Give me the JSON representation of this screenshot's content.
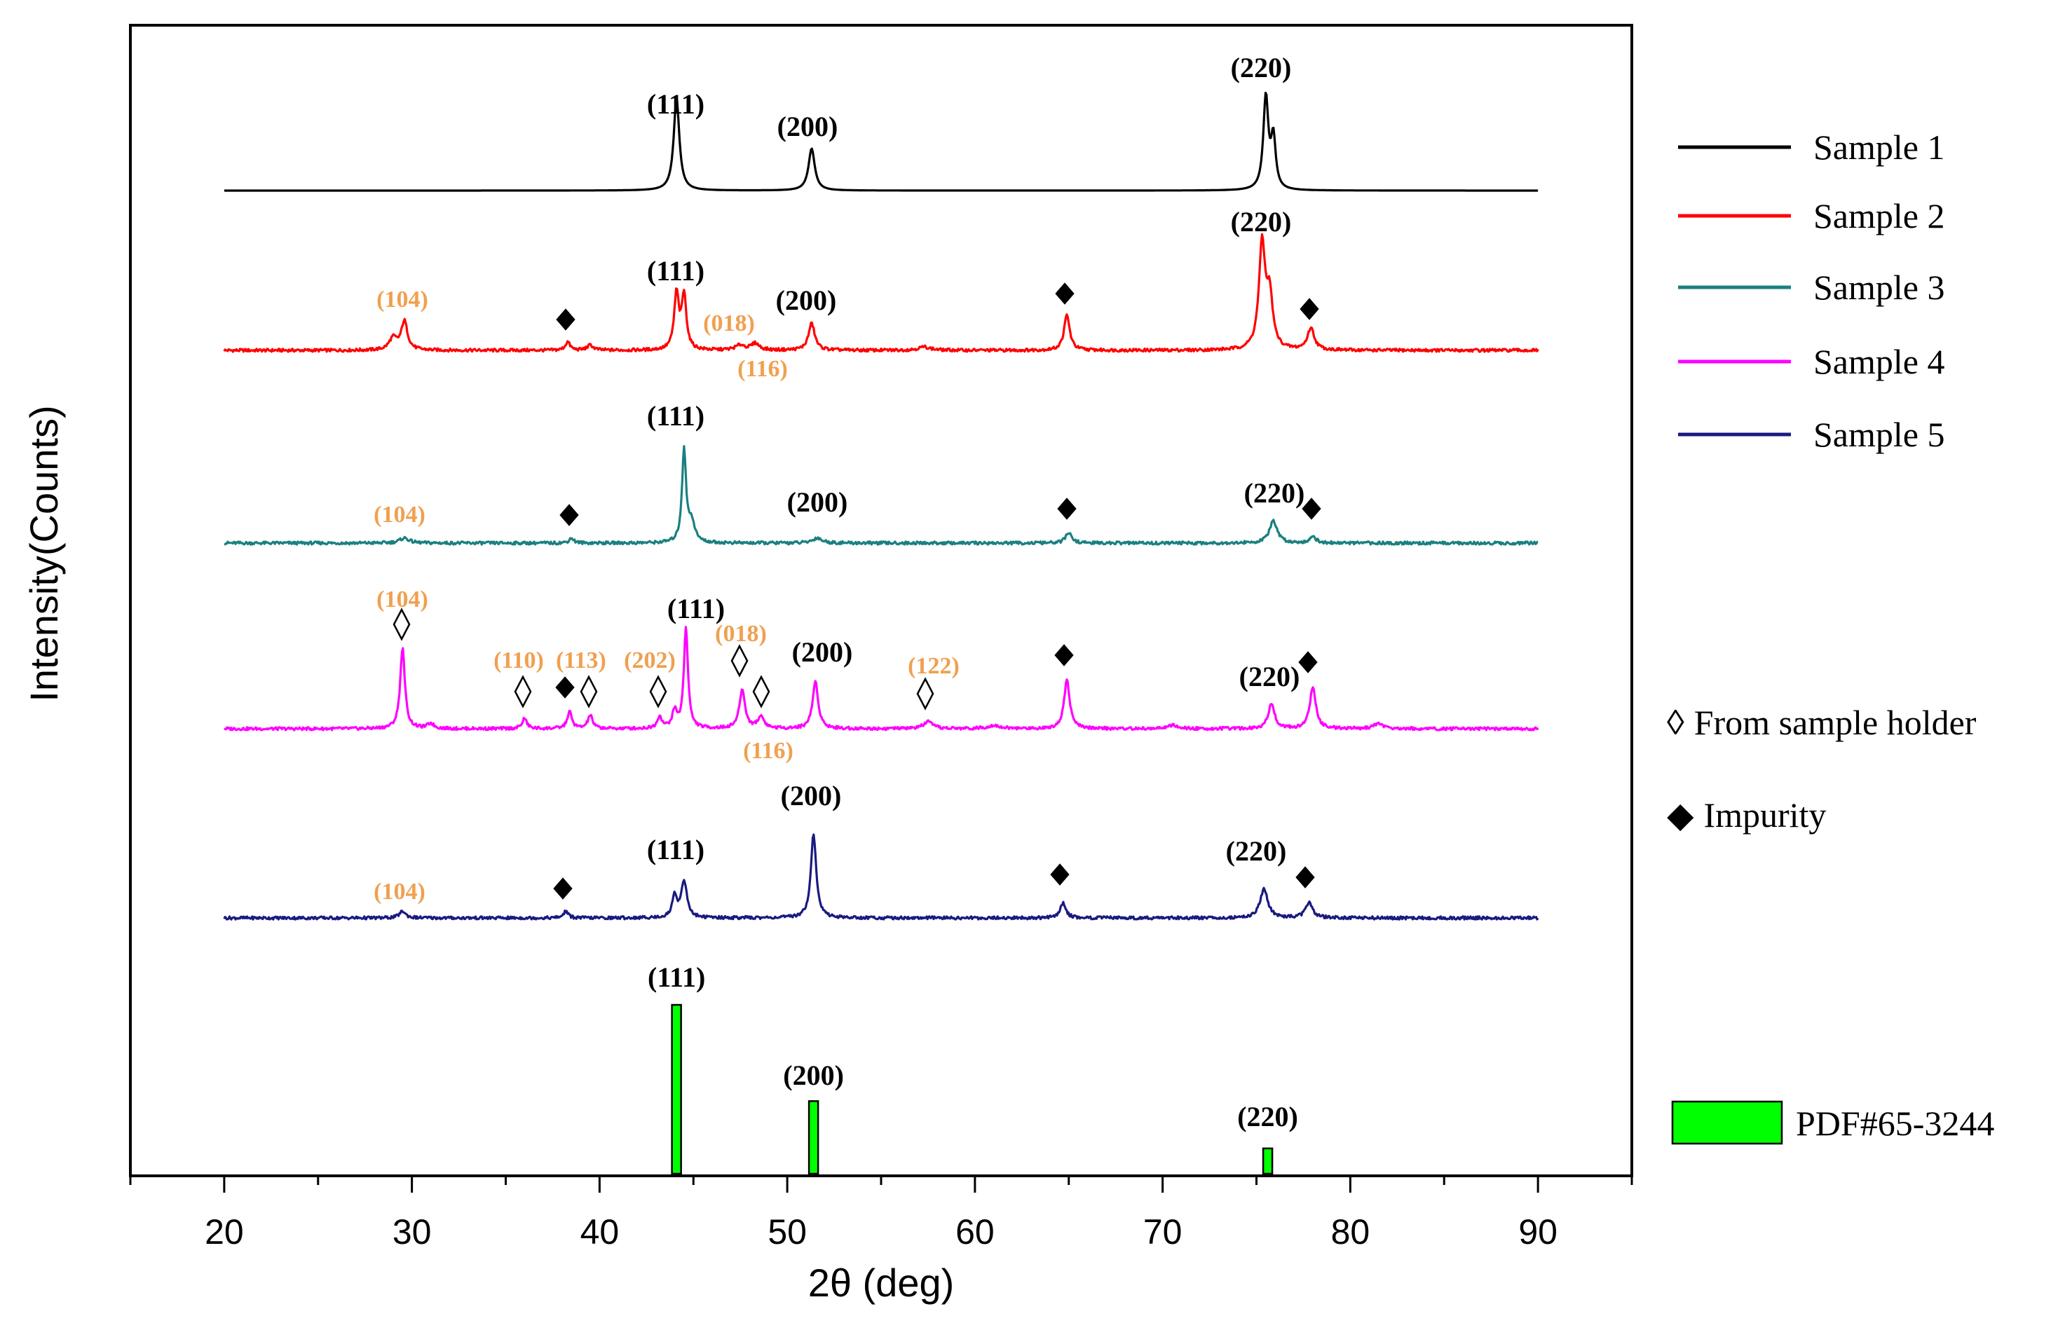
{
  "chart_data": {
    "type": "line",
    "title": "",
    "xlabel": "2θ (deg)",
    "ylabel": "Intensity(Counts)",
    "xlim": [
      15,
      95
    ],
    "xticks": [
      20,
      30,
      40,
      50,
      60,
      70,
      80,
      90
    ],
    "xtick_labels": [
      "20",
      "30",
      "40",
      "50",
      "60",
      "70",
      "80",
      "90"
    ],
    "yticks_shown": false,
    "legend": {
      "position": "right",
      "line_entries": [
        {
          "label": "Sample 1",
          "color": "#000000"
        },
        {
          "label": "Sample 2",
          "color": "#ff0000"
        },
        {
          "label": "Sample 3",
          "color": "#1a8080"
        },
        {
          "label": "Sample 4",
          "color": "#ff00ff"
        },
        {
          "label": "Sample 5",
          "color": "#1a1a80"
        }
      ],
      "symbol_entries": [
        {
          "symbol": "◊",
          "label": "From sample holder"
        },
        {
          "symbol": "◆",
          "label": "Impurity"
        }
      ],
      "bar_entry": {
        "label": "PDF#65-3244",
        "color": "#00ff00"
      }
    },
    "series": [
      {
        "name": "Sample 1",
        "color": "#000000",
        "x_range": [
          20,
          90
        ],
        "peaks": [
          {
            "x": 44.1,
            "height": 0.55,
            "width": 0.18
          },
          {
            "x": 51.3,
            "height": 0.25,
            "width": 0.2
          },
          {
            "x": 75.5,
            "height": 0.55,
            "width": 0.16
          },
          {
            "x": 75.9,
            "height": 0.3,
            "width": 0.15
          }
        ],
        "labels": [
          {
            "text": "(111)",
            "x": 44.0,
            "style": "miller"
          },
          {
            "text": "(200)",
            "x": 51.0,
            "style": "miller"
          },
          {
            "text": "(220)",
            "x": 75.5,
            "style": "miller"
          }
        ],
        "markers": []
      },
      {
        "name": "Sample 2",
        "color": "#ff0000",
        "x_range": [
          20,
          90
        ],
        "peaks": [
          {
            "x": 29.0,
            "height": 0.07,
            "width": 0.25
          },
          {
            "x": 29.6,
            "height": 0.17,
            "width": 0.2
          },
          {
            "x": 38.3,
            "height": 0.05,
            "width": 0.15
          },
          {
            "x": 39.5,
            "height": 0.03,
            "width": 0.2
          },
          {
            "x": 44.1,
            "height": 0.33,
            "width": 0.15
          },
          {
            "x": 44.5,
            "height": 0.32,
            "width": 0.15
          },
          {
            "x": 47.5,
            "height": 0.03,
            "width": 0.3
          },
          {
            "x": 48.3,
            "height": 0.04,
            "width": 0.25
          },
          {
            "x": 51.3,
            "height": 0.16,
            "width": 0.2
          },
          {
            "x": 57.3,
            "height": 0.02,
            "width": 0.4
          },
          {
            "x": 64.9,
            "height": 0.21,
            "width": 0.18
          },
          {
            "x": 75.3,
            "height": 0.62,
            "width": 0.2
          },
          {
            "x": 75.7,
            "height": 0.3,
            "width": 0.2
          },
          {
            "x": 77.9,
            "height": 0.13,
            "width": 0.22
          }
        ],
        "labels": [
          {
            "text": "(104)",
            "x": 29.5,
            "style": "orange"
          },
          {
            "text": "(111)",
            "x": 44.0,
            "style": "miller"
          },
          {
            "text": "(018)",
            "x": 47.0,
            "style": "orange"
          },
          {
            "text": "(200)",
            "x": 50.8,
            "style": "miller"
          },
          {
            "text": "(116)",
            "x": 48.5,
            "style": "orange"
          },
          {
            "text": "(220)",
            "x": 75.3,
            "style": "miller"
          }
        ],
        "markers": [
          {
            "symbol": "filled-diamond",
            "x": 38.3
          },
          {
            "symbol": "filled-diamond",
            "x": 64.9
          },
          {
            "symbol": "filled-diamond",
            "x": 77.9
          }
        ]
      },
      {
        "name": "Sample 3",
        "color": "#1a8080",
        "x_range": [
          20,
          90
        ],
        "peaks": [
          {
            "x": 29.6,
            "height": 0.03,
            "width": 0.3
          },
          {
            "x": 38.5,
            "height": 0.03,
            "width": 0.15
          },
          {
            "x": 44.5,
            "height": 0.55,
            "width": 0.13
          },
          {
            "x": 44.9,
            "height": 0.12,
            "width": 0.2
          },
          {
            "x": 51.6,
            "height": 0.03,
            "width": 0.3
          },
          {
            "x": 65.0,
            "height": 0.06,
            "width": 0.2
          },
          {
            "x": 75.9,
            "height": 0.13,
            "width": 0.25
          },
          {
            "x": 78.0,
            "height": 0.04,
            "width": 0.2
          }
        ],
        "labels": [
          {
            "text": "(104)",
            "x": 29.5,
            "style": "orange"
          },
          {
            "text": "(111)",
            "x": 44.0,
            "style": "miller"
          },
          {
            "text": "(200)",
            "x": 51.5,
            "style": "miller"
          },
          {
            "text": "(220)",
            "x": 75.8,
            "style": "miller"
          }
        ],
        "markers": [
          {
            "symbol": "filled-diamond",
            "x": 38.5
          },
          {
            "symbol": "filled-diamond",
            "x": 65.0
          },
          {
            "symbol": "filled-diamond",
            "x": 78.0
          }
        ]
      },
      {
        "name": "Sample 4",
        "color": "#ff00ff",
        "x_range": [
          20,
          90
        ],
        "peaks": [
          {
            "x": 29.5,
            "height": 0.48,
            "width": 0.15
          },
          {
            "x": 31.0,
            "height": 0.03,
            "width": 0.2
          },
          {
            "x": 36.0,
            "height": 0.06,
            "width": 0.15
          },
          {
            "x": 38.4,
            "height": 0.1,
            "width": 0.15
          },
          {
            "x": 39.5,
            "height": 0.08,
            "width": 0.15
          },
          {
            "x": 43.2,
            "height": 0.07,
            "width": 0.15
          },
          {
            "x": 44.0,
            "height": 0.1,
            "width": 0.15
          },
          {
            "x": 44.6,
            "height": 0.6,
            "width": 0.13
          },
          {
            "x": 47.6,
            "height": 0.23,
            "width": 0.18
          },
          {
            "x": 48.6,
            "height": 0.07,
            "width": 0.2
          },
          {
            "x": 51.5,
            "height": 0.28,
            "width": 0.18
          },
          {
            "x": 57.5,
            "height": 0.04,
            "width": 0.3
          },
          {
            "x": 61.0,
            "height": 0.02,
            "width": 0.4
          },
          {
            "x": 64.9,
            "height": 0.29,
            "width": 0.18
          },
          {
            "x": 70.5,
            "height": 0.02,
            "width": 0.3
          },
          {
            "x": 75.8,
            "height": 0.15,
            "width": 0.2
          },
          {
            "x": 78.0,
            "height": 0.24,
            "width": 0.2
          },
          {
            "x": 81.5,
            "height": 0.03,
            "width": 0.3
          }
        ],
        "labels": [
          {
            "text": "(104)",
            "x": 29.5,
            "style": "orange"
          },
          {
            "text": "(110)",
            "x": 35.7,
            "style": "orange"
          },
          {
            "text": "(113)",
            "x": 39.2,
            "style": "orange"
          },
          {
            "text": "(202)",
            "x": 42.6,
            "style": "orange"
          },
          {
            "text": "(111)",
            "x": 44.6,
            "style": "miller"
          },
          {
            "text": "(018)",
            "x": 47.5,
            "style": "orange"
          },
          {
            "text": "(200)",
            "x": 51.8,
            "style": "miller"
          },
          {
            "text": "(122)",
            "x": 57.6,
            "style": "orange"
          },
          {
            "text": "(116)",
            "x": 48.9,
            "style": "orange"
          },
          {
            "text": "(220)",
            "x": 75.8,
            "style": "miller"
          }
        ],
        "markers": [
          {
            "symbol": "open-diamond",
            "x": 29.5
          },
          {
            "symbol": "open-diamond",
            "x": 36.0
          },
          {
            "symbol": "filled-diamond",
            "x": 38.4
          },
          {
            "symbol": "open-diamond",
            "x": 39.5
          },
          {
            "symbol": "open-diamond",
            "x": 43.2
          },
          {
            "symbol": "open-diamond",
            "x": 47.6
          },
          {
            "symbol": "open-diamond",
            "x": 48.6
          },
          {
            "symbol": "open-diamond",
            "x": 57.5
          },
          {
            "symbol": "filled-diamond",
            "x": 64.9
          },
          {
            "symbol": "filled-diamond",
            "x": 78.0
          }
        ]
      },
      {
        "name": "Sample 5",
        "color": "#1a1a80",
        "x_range": [
          20,
          90
        ],
        "peaks": [
          {
            "x": 29.5,
            "height": 0.04,
            "width": 0.2
          },
          {
            "x": 38.2,
            "height": 0.04,
            "width": 0.15
          },
          {
            "x": 44.0,
            "height": 0.13,
            "width": 0.15
          },
          {
            "x": 44.5,
            "height": 0.22,
            "width": 0.18
          },
          {
            "x": 51.4,
            "height": 0.5,
            "width": 0.17
          },
          {
            "x": 64.7,
            "height": 0.09,
            "width": 0.18
          },
          {
            "x": 75.4,
            "height": 0.17,
            "width": 0.25
          },
          {
            "x": 77.8,
            "height": 0.09,
            "width": 0.22
          }
        ],
        "labels": [
          {
            "text": "(104)",
            "x": 29.5,
            "style": "orange"
          },
          {
            "text": "(111)",
            "x": 44.0,
            "style": "miller"
          },
          {
            "text": "(200)",
            "x": 51.3,
            "style": "miller"
          },
          {
            "text": "(220)",
            "x": 75.3,
            "style": "miller"
          }
        ],
        "markers": [
          {
            "symbol": "filled-diamond",
            "x": 38.2
          },
          {
            "symbol": "filled-diamond",
            "x": 64.7
          },
          {
            "symbol": "filled-diamond",
            "x": 77.8
          }
        ]
      }
    ],
    "reference_bars": {
      "name": "PDF#65-3244",
      "color": "#00ff00",
      "bars": [
        {
          "x": 44.1,
          "value": 100,
          "label": "(111)"
        },
        {
          "x": 51.4,
          "value": 43,
          "label": "(200)"
        },
        {
          "x": 75.6,
          "value": 15,
          "label": "(220)"
        }
      ]
    }
  }
}
